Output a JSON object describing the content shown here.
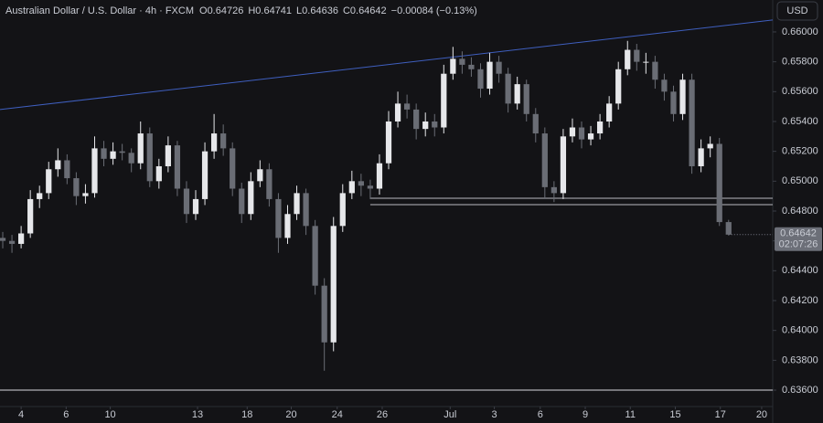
{
  "chart_data": {
    "type": "candlestick",
    "title": "Australian Dollar / U.S. Dollar · 4h · FXCM",
    "ohlc_header": [
      {
        "label": "O",
        "value": 0.64726
      },
      {
        "label": "H",
        "value": 0.64741
      },
      {
        "label": "L",
        "value": 0.64636
      },
      {
        "label": "C",
        "value": 0.64642
      }
    ],
    "change": "−0.00084 (−0.13%)",
    "currency": "USD",
    "last_price": 0.64642,
    "countdown": "02:07:26",
    "up_color": "#e6e7ea",
    "down_color": "#6a6d75",
    "x": [
      0,
      1,
      2,
      3,
      4,
      5,
      6,
      7,
      8,
      9,
      10,
      11,
      12,
      13,
      14,
      15,
      16,
      17,
      18,
      19,
      20,
      21,
      22,
      23,
      24,
      25,
      26,
      27,
      28,
      29,
      30,
      31,
      32,
      33,
      34,
      35,
      36,
      37,
      38,
      39,
      40,
      41,
      42,
      43,
      44,
      45,
      46,
      47,
      48,
      49,
      50,
      51,
      52,
      53,
      54,
      55,
      56,
      57,
      58,
      59,
      60,
      61,
      62,
      63,
      64,
      65,
      66,
      67,
      68,
      69,
      70,
      71,
      72,
      73,
      74,
      75,
      76,
      77,
      78,
      79
    ],
    "open": [
      0.6462,
      0.646,
      0.6458,
      0.6465,
      0.6488,
      0.6492,
      0.6508,
      0.6514,
      0.6502,
      0.649,
      0.6492,
      0.6522,
      0.6515,
      0.652,
      0.6519,
      0.6512,
      0.6532,
      0.65,
      0.651,
      0.6524,
      0.6495,
      0.6478,
      0.6488,
      0.652,
      0.6532,
      0.6522,
      0.6495,
      0.6478,
      0.65,
      0.6508,
      0.6488,
      0.6462,
      0.6478,
      0.6492,
      0.647,
      0.643,
      0.6392,
      0.647,
      0.6492,
      0.65,
      0.6497,
      0.6495,
      0.6512,
      0.654,
      0.6552,
      0.6548,
      0.6535,
      0.654,
      0.6536,
      0.6572,
      0.6582,
      0.6578,
      0.6575,
      0.6562,
      0.658,
      0.6572,
      0.6552,
      0.6565,
      0.6545,
      0.6532,
      0.6496,
      0.6492,
      0.653,
      0.6536,
      0.6528,
      0.6532,
      0.654,
      0.6552,
      0.6575,
      0.6588,
      0.658,
      0.658,
      0.6568,
      0.656,
      0.6545,
      0.6568,
      0.651,
      0.6522,
      0.6525,
      0.64726
    ],
    "high": [
      0.6466,
      0.6464,
      0.647,
      0.6494,
      0.6497,
      0.6513,
      0.6522,
      0.6518,
      0.6506,
      0.6498,
      0.653,
      0.6527,
      0.6526,
      0.6525,
      0.6522,
      0.654,
      0.6536,
      0.6515,
      0.653,
      0.6527,
      0.65,
      0.6494,
      0.6526,
      0.6545,
      0.6538,
      0.6526,
      0.6499,
      0.6506,
      0.6514,
      0.6512,
      0.6492,
      0.6484,
      0.6497,
      0.6495,
      0.6474,
      0.6435,
      0.6476,
      0.6498,
      0.6507,
      0.6505,
      0.6501,
      0.6518,
      0.6547,
      0.656,
      0.6558,
      0.6552,
      0.6546,
      0.6545,
      0.6578,
      0.659,
      0.6587,
      0.6583,
      0.6579,
      0.6586,
      0.6584,
      0.6576,
      0.657,
      0.6568,
      0.6549,
      0.6536,
      0.65,
      0.6535,
      0.6542,
      0.654,
      0.6537,
      0.6545,
      0.6557,
      0.658,
      0.6594,
      0.6592,
      0.6586,
      0.6584,
      0.6572,
      0.6564,
      0.6572,
      0.6572,
      0.6528,
      0.653,
      0.6529,
      0.64741
    ],
    "low": [
      0.6455,
      0.6452,
      0.6455,
      0.6462,
      0.6482,
      0.6488,
      0.6503,
      0.6498,
      0.6484,
      0.6485,
      0.6489,
      0.651,
      0.6511,
      0.6514,
      0.6506,
      0.6508,
      0.6496,
      0.6495,
      0.6506,
      0.649,
      0.6472,
      0.6474,
      0.6484,
      0.6515,
      0.6517,
      0.649,
      0.6472,
      0.6474,
      0.6496,
      0.6483,
      0.6452,
      0.6458,
      0.6474,
      0.6464,
      0.6424,
      0.6373,
      0.6386,
      0.6466,
      0.6488,
      0.649,
      0.6488,
      0.6491,
      0.6508,
      0.6536,
      0.6542,
      0.6528,
      0.653,
      0.653,
      0.6532,
      0.6568,
      0.6572,
      0.657,
      0.6556,
      0.6558,
      0.6566,
      0.6546,
      0.6548,
      0.654,
      0.6526,
      0.6488,
      0.6486,
      0.6488,
      0.6526,
      0.6522,
      0.6524,
      0.6528,
      0.6536,
      0.6548,
      0.6571,
      0.6574,
      0.6572,
      0.6562,
      0.6554,
      0.654,
      0.6541,
      0.6505,
      0.6506,
      0.6516,
      0.647,
      0.64636
    ],
    "close": [
      0.646,
      0.6458,
      0.6465,
      0.6488,
      0.6492,
      0.6508,
      0.6514,
      0.6502,
      0.649,
      0.6492,
      0.6522,
      0.6515,
      0.652,
      0.6519,
      0.6512,
      0.6532,
      0.65,
      0.651,
      0.6524,
      0.6495,
      0.6478,
      0.6488,
      0.652,
      0.6532,
      0.6522,
      0.6495,
      0.6478,
      0.65,
      0.6508,
      0.6488,
      0.6462,
      0.6478,
      0.6492,
      0.647,
      0.643,
      0.6392,
      0.647,
      0.6492,
      0.65,
      0.6497,
      0.6495,
      0.6512,
      0.654,
      0.6552,
      0.6548,
      0.6535,
      0.654,
      0.6536,
      0.6572,
      0.6582,
      0.6578,
      0.6575,
      0.6562,
      0.658,
      0.6572,
      0.6552,
      0.6565,
      0.6545,
      0.6532,
      0.6496,
      0.6492,
      0.653,
      0.6536,
      0.6528,
      0.6532,
      0.654,
      0.6552,
      0.6575,
      0.6588,
      0.658,
      0.658,
      0.6568,
      0.656,
      0.6545,
      0.6568,
      0.651,
      0.6522,
      0.6525,
      0.64726,
      0.64642
    ],
    "levels": [
      {
        "from": 40,
        "price": 0.64886,
        "color": "#b8bac0"
      },
      {
        "from": 40,
        "price": 0.64843,
        "color": "#b8bac0"
      },
      {
        "from": -0.3,
        "price": 0.636,
        "color": "#d8d9dd"
      }
    ],
    "trendline": {
      "x": [
        -0.3,
        83.8
      ],
      "price": [
        0.6548,
        0.6608
      ],
      "color": "#3f5fbf"
    },
    "xlim": [
      -0.3,
      83.8
    ],
    "ylim": [
      0.6349,
      0.66214
    ],
    "xticks": [
      {
        "value": 2.0,
        "label": "4"
      },
      {
        "value": 6.9,
        "label": "6"
      },
      {
        "value": 11.7,
        "label": "10"
      },
      {
        "value": 21.2,
        "label": "13"
      },
      {
        "value": 26.6,
        "label": "18"
      },
      {
        "value": 31.4,
        "label": "20"
      },
      {
        "value": 36.4,
        "label": "24"
      },
      {
        "value": 41.3,
        "label": "26"
      },
      {
        "value": 48.7,
        "label": "Jul"
      },
      {
        "value": 53.5,
        "label": "3"
      },
      {
        "value": 58.5,
        "label": "6"
      },
      {
        "value": 63.4,
        "label": "9"
      },
      {
        "value": 68.3,
        "label": "11"
      },
      {
        "value": 73.2,
        "label": "15"
      },
      {
        "value": 78.1,
        "label": "17"
      },
      {
        "value": 82.6,
        "label": "20"
      }
    ],
    "yticks": [
      {
        "value": 0.636,
        "label": "0.63600"
      },
      {
        "value": 0.638,
        "label": "0.63800"
      },
      {
        "value": 0.64,
        "label": "0.64000"
      },
      {
        "value": 0.642,
        "label": "0.64200"
      },
      {
        "value": 0.644,
        "label": "0.64400"
      },
      {
        "value": 0.646,
        "label": "0.64600"
      },
      {
        "value": 0.648,
        "label": "0.64800"
      },
      {
        "value": 0.65,
        "label": "0.65000"
      },
      {
        "value": 0.652,
        "label": "0.65200"
      },
      {
        "value": 0.654,
        "label": "0.65400"
      },
      {
        "value": 0.656,
        "label": "0.65600"
      },
      {
        "value": 0.658,
        "label": "0.65800"
      },
      {
        "value": 0.66,
        "label": "0.66000"
      }
    ]
  }
}
